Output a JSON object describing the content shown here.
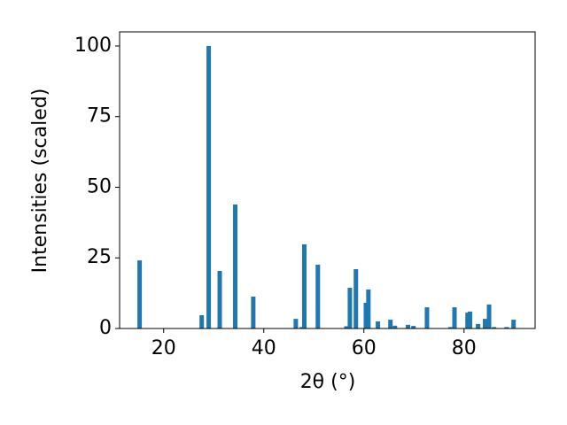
{
  "chart_data": {
    "type": "bar",
    "x_label": "2θ (°)",
    "y_label": "Intensities (scaled)",
    "x": [
      15.2,
      27.6,
      29.0,
      31.2,
      34.3,
      37.9,
      46.4,
      47.6,
      48.1,
      50.8,
      56.5,
      57.2,
      58.4,
      60.4,
      60.9,
      62.8,
      65.3,
      66.2,
      68.8,
      69.9,
      72.6,
      77.3,
      78.1,
      80.7,
      81.2,
      82.8,
      84.2,
      85.0,
      86.0,
      88.5,
      89.9
    ],
    "values": [
      24.1,
      4.7,
      100,
      20.4,
      43.9,
      11.3,
      3.4,
      0.5,
      29.8,
      22.6,
      0.8,
      14.4,
      21.0,
      9.1,
      13.8,
      2.5,
      3.1,
      1.0,
      1.3,
      0.9,
      7.5,
      0.5,
      7.5,
      5.6,
      6.0,
      1.6,
      3.4,
      8.5,
      0.5,
      0.5,
      3.1
    ],
    "color": "#1f77b4",
    "xlim": [
      11.2,
      94.2
    ],
    "xticks": [
      20,
      40,
      60,
      80
    ],
    "ylim": [
      0,
      105
    ],
    "yticks": [
      0,
      25,
      50,
      75,
      100
    ],
    "grid": false
  }
}
